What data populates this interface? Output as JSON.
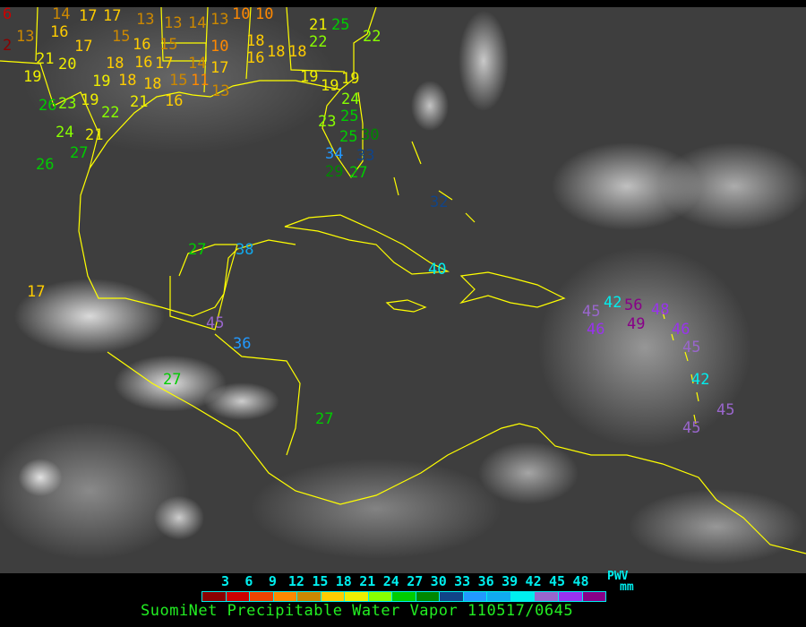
{
  "title": "SuomiNet Precipitable Water Vapor 110517/0645",
  "legend": {
    "ticks": [
      "3",
      "6",
      "9",
      "12",
      "15",
      "18",
      "21",
      "24",
      "27",
      "30",
      "33",
      "36",
      "39",
      "42",
      "45",
      "48"
    ],
    "unit_top": "PWV",
    "unit_bottom": "mm",
    "colors": [
      "#8b0000",
      "#cc0000",
      "#ee4400",
      "#ff8800",
      "#cc8800",
      "#ffcc00",
      "#eeee00",
      "#88ff00",
      "#00cc00",
      "#008800",
      "#114488",
      "#2299ff",
      "#11aaee",
      "#00eeee",
      "#9966cc",
      "#9933ee",
      "#880088"
    ]
  },
  "map": {
    "coastline_color": "#ffff00"
  },
  "stations": [
    "6",
    "14",
    "17",
    "17",
    "13",
    "13",
    "14",
    "13",
    "10",
    "10",
    "2",
    "13",
    "16",
    "17",
    "15",
    "16",
    "15",
    "16",
    "14",
    "17",
    "18",
    "21",
    "20",
    "18",
    "17",
    "15",
    "16",
    "10",
    "18",
    "18",
    "11",
    "19",
    "19",
    "18",
    "18",
    "16",
    "13",
    "19",
    "19",
    "19",
    "26",
    "23",
    "19",
    "22",
    "21",
    "24",
    "21",
    "24",
    "26",
    "27",
    "25",
    "21",
    "22",
    "25",
    "22",
    "23",
    "25",
    "30",
    "33",
    "34",
    "27",
    "29",
    "32",
    "27",
    "38",
    "40",
    "45",
    "36",
    "27",
    "27",
    "17",
    "45",
    "42",
    "56",
    "46",
    "49",
    "48",
    "46",
    "45",
    "42",
    "45",
    "45"
  ]
}
